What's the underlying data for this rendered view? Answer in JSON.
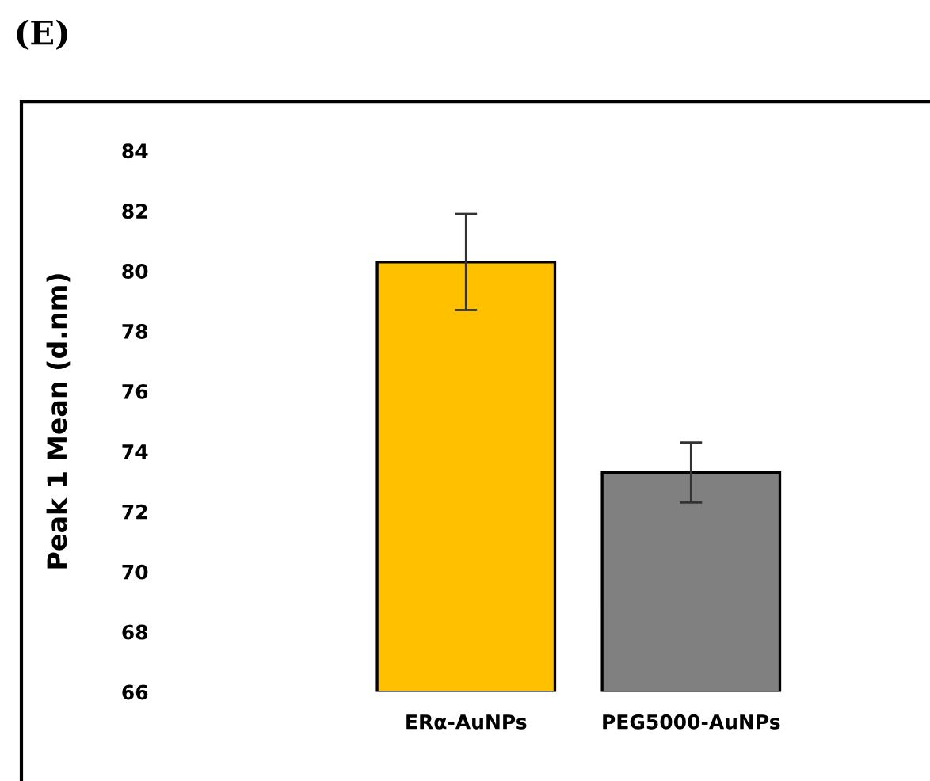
{
  "chart_data": {
    "type": "bar",
    "title": "(E)",
    "ylabel": "Peak 1 Mean (d.nm)",
    "categories": [
      "ERα-AuNPs",
      "PEG5000-AuNPs"
    ],
    "values": [
      80.3,
      73.3
    ],
    "colors": [
      "#ffc000",
      "#808080"
    ],
    "errors": [
      1.6,
      1.0
    ],
    "ylim": [
      66,
      84
    ],
    "yticks": [
      66,
      68,
      70,
      72,
      74,
      76,
      78,
      80,
      82,
      84
    ],
    "grid": false,
    "legend": false
  }
}
